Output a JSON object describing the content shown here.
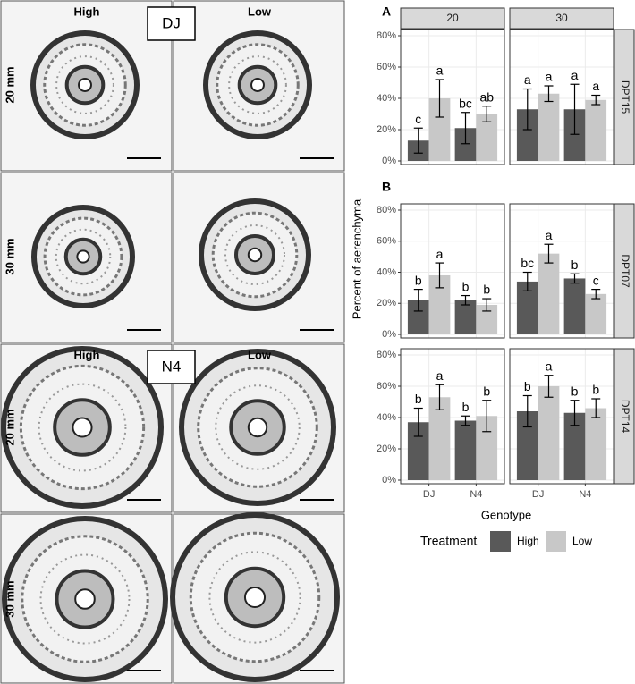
{
  "images": {
    "groups": [
      {
        "label": "DJ",
        "columns": [
          "High",
          "Low"
        ],
        "rows": [
          "20 mm",
          "30 mm"
        ]
      },
      {
        "label": "N4",
        "columns": [
          "High",
          "Low"
        ],
        "rows": [
          "20 mm",
          "30 mm"
        ]
      }
    ]
  },
  "chart_data": {
    "type": "bar",
    "panel_labels": [
      "A",
      "B"
    ],
    "x_label": "Genotype",
    "y_label": "Percent of aerenchyma",
    "legend_title": "Treatment",
    "columns": [
      "20",
      "30"
    ],
    "rows": [
      "DPT15",
      "DPT07",
      "DPT14"
    ],
    "categories": [
      "DJ",
      "N4"
    ],
    "ylim": [
      0,
      80
    ],
    "yticks": [
      {
        "value": 0,
        "label": "0%"
      },
      {
        "value": 20,
        "label": "20%"
      },
      {
        "value": 40,
        "label": "40%"
      },
      {
        "value": 60,
        "label": "60%"
      },
      {
        "value": 80,
        "label": "80%"
      }
    ],
    "grid": true,
    "series": [
      {
        "name": "High",
        "color": "#595959"
      },
      {
        "name": "Low",
        "color": "#c8c8c8"
      }
    ],
    "panels": [
      {
        "series": [
          {
            "values": [
              13,
              21
            ],
            "errors": [
              8,
              10
            ],
            "letters": [
              "c",
              "bc"
            ]
          },
          {
            "values": [
              40,
              30
            ],
            "errors": [
              12,
              5
            ],
            "letters": [
              "a",
              "ab"
            ]
          }
        ]
      },
      {
        "series": [
          {
            "values": [
              33,
              33
            ],
            "errors": [
              13,
              16
            ],
            "letters": [
              "a",
              "a"
            ]
          },
          {
            "values": [
              43,
              39
            ],
            "errors": [
              5,
              3
            ],
            "letters": [
              "a",
              "a"
            ]
          }
        ]
      },
      {
        "series": [
          {
            "values": [
              22,
              22
            ],
            "errors": [
              7,
              3
            ],
            "letters": [
              "b",
              "b"
            ]
          },
          {
            "values": [
              38,
              19
            ],
            "errors": [
              8,
              4
            ],
            "letters": [
              "a",
              "b"
            ]
          }
        ]
      },
      {
        "series": [
          {
            "values": [
              34,
              36
            ],
            "errors": [
              6,
              3
            ],
            "letters": [
              "bc",
              "b"
            ]
          },
          {
            "values": [
              52,
              26
            ],
            "errors": [
              6,
              3
            ],
            "letters": [
              "a",
              "c"
            ]
          }
        ]
      },
      {
        "series": [
          {
            "values": [
              37,
              38
            ],
            "errors": [
              9,
              3
            ],
            "letters": [
              "b",
              "b"
            ]
          },
          {
            "values": [
              53,
              41
            ],
            "errors": [
              8,
              10
            ],
            "letters": [
              "a",
              "b"
            ]
          }
        ]
      },
      {
        "series": [
          {
            "values": [
              44,
              43
            ],
            "errors": [
              10,
              8
            ],
            "letters": [
              "b",
              "b"
            ]
          },
          {
            "values": [
              60,
              46
            ],
            "errors": [
              7,
              6
            ],
            "letters": [
              "a",
              "b"
            ]
          }
        ]
      }
    ]
  }
}
